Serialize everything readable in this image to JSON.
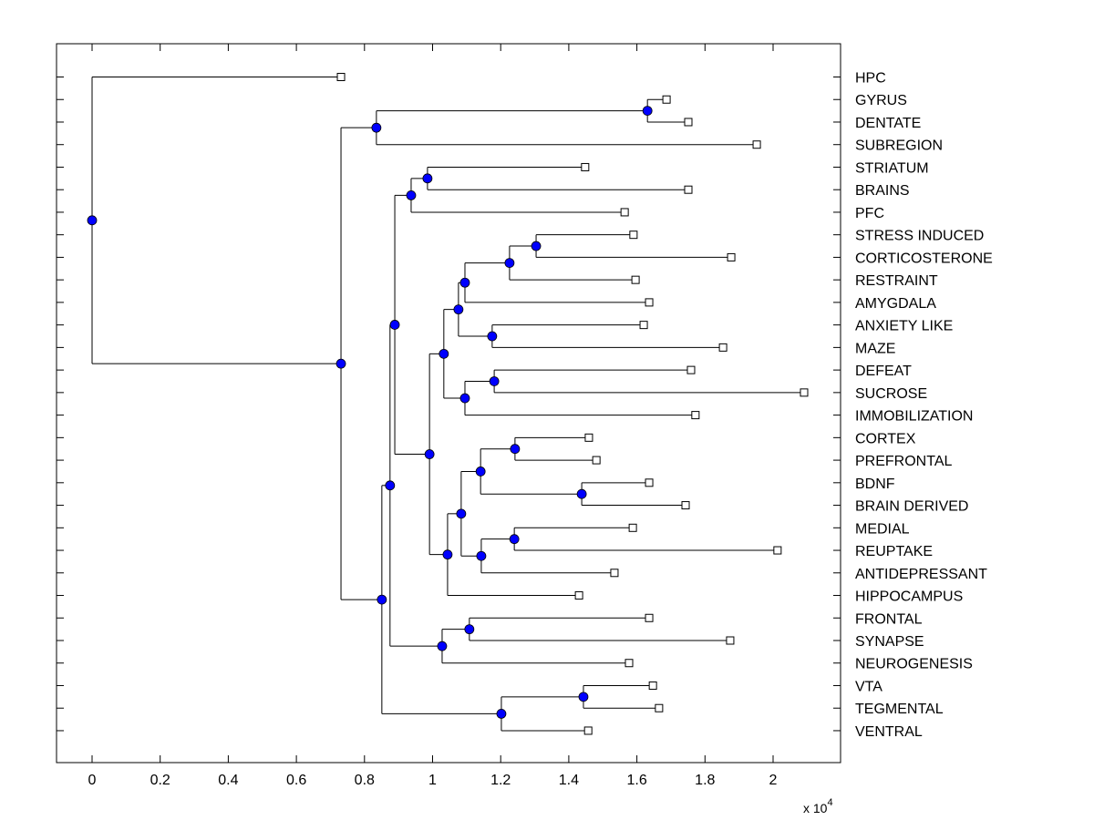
{
  "chart_data": {
    "type": "dendrogram",
    "orientation": "left-to-right",
    "title": "",
    "xlabel": "",
    "ylabel": "",
    "x_multiplier_label": "x 10",
    "x_multiplier_exponent": "4",
    "xlim": [
      -0.1,
      2.2
    ],
    "xticks": [
      0,
      0.2,
      0.4,
      0.6,
      0.8,
      1,
      1.2,
      1.4,
      1.6,
      1.8,
      2
    ],
    "xtick_labels": [
      "0",
      "0.2",
      "0.4",
      "0.6",
      "0.8",
      "1",
      "1.2",
      "1.4",
      "1.6",
      "1.8",
      "2"
    ],
    "y_labels_side": "right",
    "leaves": [
      {
        "label": "HPC",
        "x": 0.731
      },
      {
        "label": "GYRUS",
        "x": 1.687
      },
      {
        "label": "DENTATE",
        "x": 1.751
      },
      {
        "label": "SUBREGION",
        "x": 1.952
      },
      {
        "label": "STRIATUM",
        "x": 1.448
      },
      {
        "label": "BRAINS",
        "x": 1.751
      },
      {
        "label": "PFC",
        "x": 1.564
      },
      {
        "label": "STRESS INDUCED",
        "x": 1.59
      },
      {
        "label": "CORTICOSTERONE",
        "x": 1.877
      },
      {
        "label": "RESTRAINT",
        "x": 1.596
      },
      {
        "label": "AMYGDALA",
        "x": 1.636
      },
      {
        "label": "ANXIETY LIKE",
        "x": 1.62
      },
      {
        "label": "MAZE",
        "x": 1.853
      },
      {
        "label": "DEFEAT",
        "x": 1.759
      },
      {
        "label": "SUCROSE",
        "x": 2.091
      },
      {
        "label": "IMMOBILIZATION",
        "x": 1.772
      },
      {
        "label": "CORTEX",
        "x": 1.459
      },
      {
        "label": "PREFRONTAL",
        "x": 1.481
      },
      {
        "label": "BDNF",
        "x": 1.636
      },
      {
        "label": "BRAIN DERIVED",
        "x": 1.743
      },
      {
        "label": "MEDIAL",
        "x": 1.588
      },
      {
        "label": "REUPTAKE",
        "x": 2.013
      },
      {
        "label": "ANTIDEPRESSANT",
        "x": 1.534
      },
      {
        "label": "HIPPOCAMPUS",
        "x": 1.43
      },
      {
        "label": "FRONTAL",
        "x": 1.636
      },
      {
        "label": "SYNAPSE",
        "x": 1.874
      },
      {
        "label": "NEUROGENESIS",
        "x": 1.577
      },
      {
        "label": "VTA",
        "x": 1.647
      },
      {
        "label": "TEGMENTAL",
        "x": 1.665
      },
      {
        "label": "VENTRAL",
        "x": 1.457
      }
    ],
    "tree": {
      "x": 0,
      "children": [
        {
          "leaf": 0
        },
        {
          "x": 0.731,
          "children": [
            {
              "x": 0.835,
              "children": [
                {
                  "x": 1.631,
                  "children": [
                    {
                      "leaf": 1
                    },
                    {
                      "leaf": 2
                    }
                  ]
                },
                {
                  "leaf": 3
                }
              ]
            },
            {
              "x": 0.851,
              "children": [
                {
                  "x": 0.875,
                  "children": [
                    {
                      "x": 0.889,
                      "children": [
                        {
                          "x": 0.937,
                          "children": [
                            {
                              "x": 0.985,
                              "children": [
                                {
                                  "leaf": 4
                                },
                                {
                                  "leaf": 5
                                }
                              ]
                            },
                            {
                              "leaf": 6
                            }
                          ]
                        },
                        {
                          "x": 0.991,
                          "children": [
                            {
                              "x": 1.033,
                              "children": [
                                {
                                  "x": 1.076,
                                  "children": [
                                    {
                                      "x": 1.095,
                                      "children": [
                                        {
                                          "x": 1.226,
                                          "children": [
                                            {
                                              "x": 1.304,
                                              "children": [
                                                {
                                                  "leaf": 7
                                                },
                                                {
                                                  "leaf": 8
                                                }
                                              ]
                                            },
                                            {
                                              "leaf": 9
                                            }
                                          ]
                                        },
                                        {
                                          "leaf": 10
                                        }
                                      ]
                                    },
                                    {
                                      "x": 1.175,
                                      "children": [
                                        {
                                          "leaf": 11
                                        },
                                        {
                                          "leaf": 12
                                        }
                                      ]
                                    }
                                  ]
                                },
                                {
                                  "x": 1.095,
                                  "children": [
                                    {
                                      "x": 1.181,
                                      "children": [
                                        {
                                          "leaf": 13
                                        },
                                        {
                                          "leaf": 14
                                        }
                                      ]
                                    },
                                    {
                                      "leaf": 15
                                    }
                                  ]
                                }
                              ]
                            },
                            {
                              "x": 1.044,
                              "children": [
                                {
                                  "x": 1.084,
                                  "children": [
                                    {
                                      "x": 1.141,
                                      "children": [
                                        {
                                          "x": 1.242,
                                          "children": [
                                            {
                                              "leaf": 16
                                            },
                                            {
                                              "leaf": 17
                                            }
                                          ]
                                        },
                                        {
                                          "x": 1.438,
                                          "children": [
                                            {
                                              "leaf": 18
                                            },
                                            {
                                              "leaf": 19
                                            }
                                          ]
                                        }
                                      ]
                                    },
                                    {
                                      "x": 1.143,
                                      "children": [
                                        {
                                          "x": 1.24,
                                          "children": [
                                            {
                                              "leaf": 20
                                            },
                                            {
                                              "leaf": 21
                                            }
                                          ]
                                        },
                                        {
                                          "leaf": 22
                                        }
                                      ]
                                    }
                                  ]
                                },
                                {
                                  "leaf": 23
                                }
                              ]
                            }
                          ]
                        }
                      ]
                    },
                    {
                      "x": 1.028,
                      "children": [
                        {
                          "x": 1.108,
                          "children": [
                            {
                              "leaf": 24
                            },
                            {
                              "leaf": 25
                            }
                          ]
                        },
                        {
                          "leaf": 26
                        }
                      ]
                    }
                  ]
                },
                {
                  "x": 1.202,
                  "children": [
                    {
                      "x": 1.443,
                      "children": [
                        {
                          "leaf": 27
                        },
                        {
                          "leaf": 28
                        }
                      ]
                    },
                    {
                      "leaf": 29
                    }
                  ]
                }
              ]
            }
          ]
        }
      ]
    },
    "colors": {
      "node_fill": "#0000ff",
      "node_stroke": "#000000",
      "line": "#000000",
      "leaf_fill": "#ffffff",
      "background": "#ffffff"
    }
  }
}
